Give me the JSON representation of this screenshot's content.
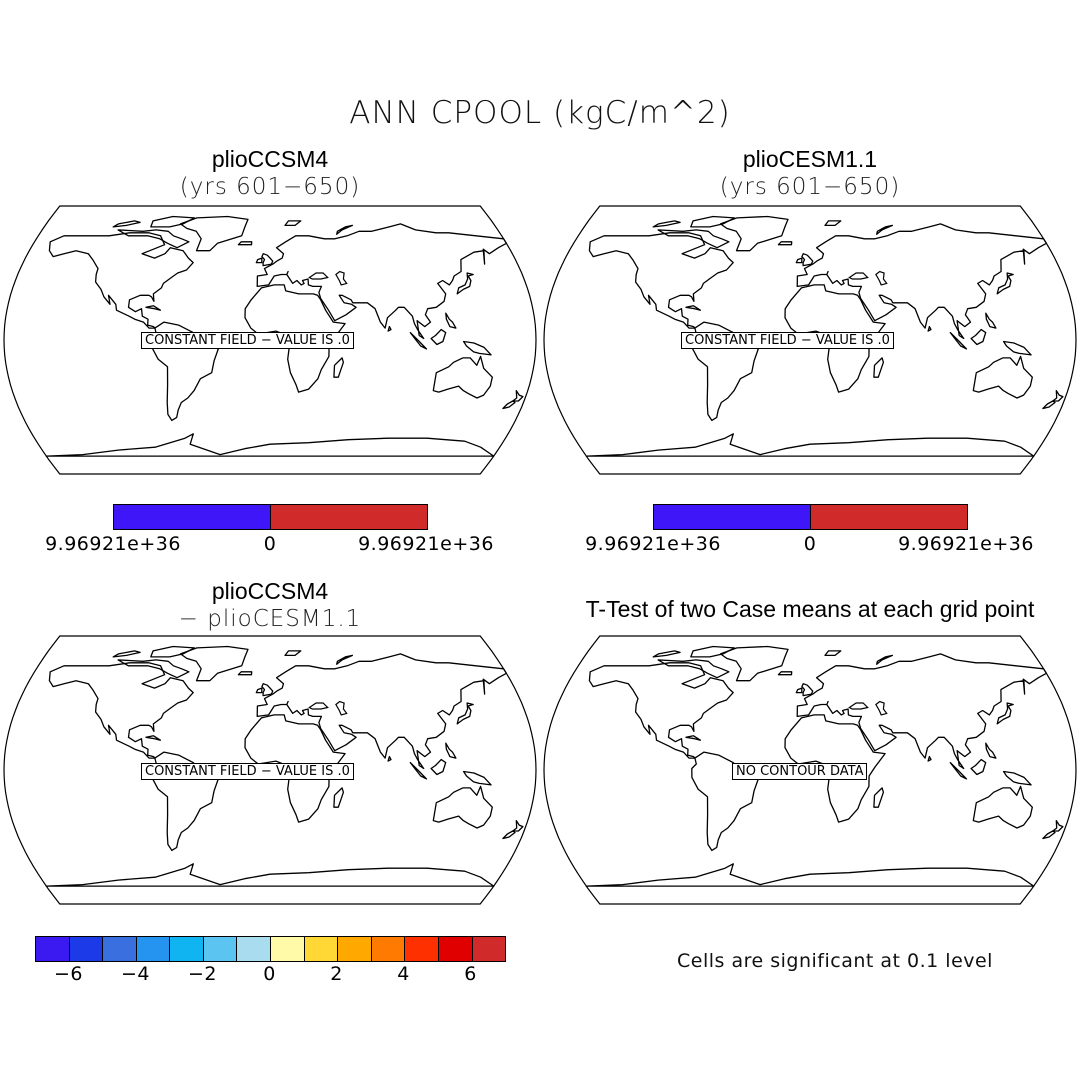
{
  "title": "ANN CPOOL (kgC/m^2)",
  "panels": [
    {
      "title": "plioCCSM4",
      "subtitle": "(yrs 601−650)",
      "message": "CONSTANT FIELD − VALUE IS .0"
    },
    {
      "title": "plioCESM1.1",
      "subtitle": "(yrs 601−650)",
      "message": "CONSTANT FIELD − VALUE IS .0"
    },
    {
      "title": "plioCCSM4",
      "subtitle": "− plioCESM1.1",
      "message": "CONSTANT FIELD − VALUE IS .0"
    },
    {
      "title": "T-Test of two Case means at each grid point",
      "subtitle": "",
      "message": "NO CONTOUR DATA"
    }
  ],
  "colorbar_top": {
    "colors": [
      "#3f16f7",
      "#d12a2a"
    ],
    "labels": [
      "9.96921e+36",
      "0",
      "9.96921e+36"
    ]
  },
  "colorbar_bottom": {
    "colors": [
      "#3a1af0",
      "#1c3ae8",
      "#3a6fe0",
      "#2594f0",
      "#10b4f0",
      "#5cc4f0",
      "#aadcf0",
      "#fefaa8",
      "#ffd836",
      "#ffa800",
      "#ff7a00",
      "#ff3000",
      "#e00000",
      "#d02a2a"
    ],
    "labels": [
      "−6",
      "−4",
      "−2",
      "0",
      "2",
      "4",
      "6"
    ]
  },
  "note": "Cells are significant at 0.1 level"
}
